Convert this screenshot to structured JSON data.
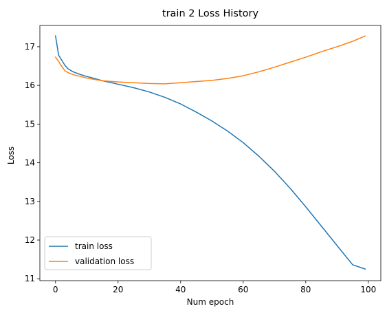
{
  "chart_data": {
    "type": "line",
    "title": "train 2 Loss History",
    "xlabel": "Num epoch",
    "ylabel": "Loss",
    "xlim": [
      -5,
      104
    ],
    "ylim": [
      10.95,
      17.55
    ],
    "xticks": [
      0,
      20,
      40,
      60,
      80,
      100
    ],
    "yticks": [
      11,
      12,
      13,
      14,
      15,
      16,
      17
    ],
    "grid": false,
    "legend_position": "lower-left",
    "series": [
      {
        "name": "train loss",
        "color": "#1f77b4",
        "x": [
          0,
          1,
          2,
          3,
          4,
          5,
          6,
          8,
          10,
          12,
          15,
          20,
          25,
          30,
          35,
          40,
          45,
          50,
          55,
          60,
          65,
          70,
          75,
          80,
          85,
          90,
          95,
          99
        ],
        "y": [
          17.28,
          16.78,
          16.65,
          16.52,
          16.43,
          16.38,
          16.34,
          16.28,
          16.23,
          16.19,
          16.12,
          16.03,
          15.94,
          15.83,
          15.69,
          15.52,
          15.31,
          15.08,
          14.82,
          14.52,
          14.17,
          13.78,
          13.34,
          12.86,
          12.36,
          11.86,
          11.36,
          11.25
        ]
      },
      {
        "name": "validation loss",
        "color": "#ff7f0e",
        "x": [
          0,
          1,
          2,
          3,
          4,
          5,
          6,
          8,
          10,
          12,
          15,
          20,
          25,
          30,
          35,
          40,
          45,
          50,
          55,
          60,
          65,
          70,
          75,
          80,
          85,
          90,
          95,
          99
        ],
        "y": [
          16.73,
          16.62,
          16.49,
          16.38,
          16.33,
          16.3,
          16.27,
          16.23,
          16.19,
          16.16,
          16.12,
          16.09,
          16.07,
          16.05,
          16.04,
          16.07,
          16.1,
          16.13,
          16.18,
          16.25,
          16.35,
          16.47,
          16.6,
          16.73,
          16.87,
          17.0,
          17.14,
          17.28
        ]
      }
    ]
  }
}
